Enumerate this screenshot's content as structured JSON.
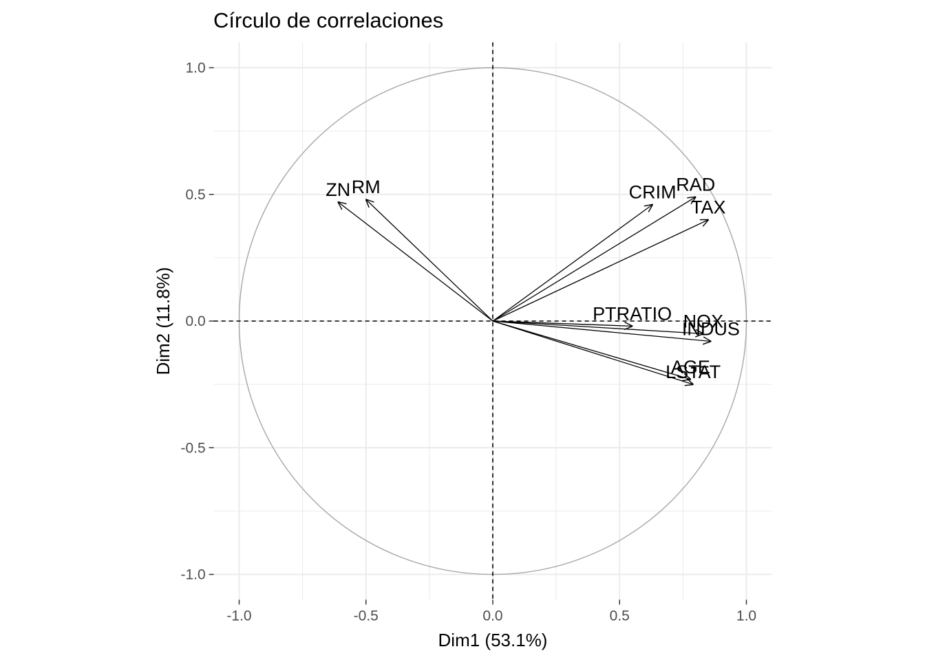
{
  "chart_data": {
    "type": "scatter",
    "title": "Círculo de correlaciones",
    "xlabel": "Dim1 (53.1%)",
    "ylabel": "Dim2 (11.8%)",
    "xlim": [
      -1.1,
      1.1
    ],
    "ylim": [
      -1.1,
      1.1
    ],
    "x_ticks": [
      -1.0,
      -0.5,
      0.0,
      0.5,
      1.0
    ],
    "x_tick_labels": [
      "-1.0",
      "-0.5",
      "0.0",
      "0.5",
      "1.0"
    ],
    "y_ticks": [
      -1.0,
      -0.5,
      0.0,
      0.5,
      1.0
    ],
    "y_tick_labels": [
      "-1.0",
      "-0.5",
      "0.0",
      "0.5",
      "1.0"
    ],
    "grid": true,
    "unit_circle": true,
    "reference_lines": "dashed lines at x=0 and y=0",
    "variables": [
      {
        "label": "ZN",
        "x": -0.61,
        "y": 0.47
      },
      {
        "label": "RM",
        "x": -0.5,
        "y": 0.48
      },
      {
        "label": "CRIM",
        "x": 0.63,
        "y": 0.46
      },
      {
        "label": "RAD",
        "x": 0.8,
        "y": 0.49
      },
      {
        "label": "TAX",
        "x": 0.85,
        "y": 0.4
      },
      {
        "label": "PTRATIO",
        "x": 0.55,
        "y": -0.02
      },
      {
        "label": "NOX",
        "x": 0.83,
        "y": -0.05
      },
      {
        "label": "INDUS",
        "x": 0.86,
        "y": -0.08
      },
      {
        "label": "AGE",
        "x": 0.78,
        "y": -0.23
      },
      {
        "label": "LSTAT",
        "x": 0.79,
        "y": -0.25
      }
    ],
    "colors": {
      "arrow": "#000000",
      "circle": "#a6a6a6",
      "grid": "#ebebeb",
      "tick_text": "#4d4d4d"
    }
  }
}
